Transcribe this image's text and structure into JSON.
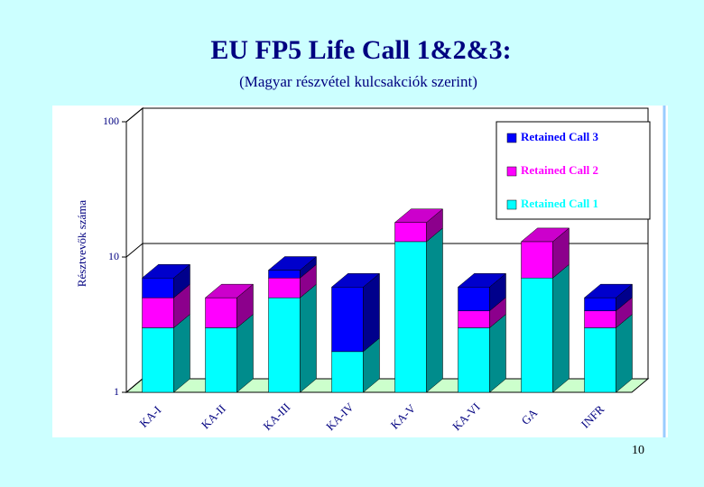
{
  "title": "EU FP5 Life Call 1&2&3:",
  "subtitle": "(Magyar részvétel kulcsakciók szerint)",
  "page_number": "10",
  "chart_data": {
    "type": "stacked_bar_3d",
    "y_label": "Résztvevők száma",
    "categories": [
      "KA-I",
      "KA-II",
      "KA-III",
      "KA-IV",
      "KA-V",
      "KA-VI",
      "GA",
      "INFR"
    ],
    "series": [
      {
        "name": "Retained Call 1",
        "color": "#00ffff",
        "values": [
          3,
          3,
          5,
          2,
          13,
          3,
          7,
          3
        ]
      },
      {
        "name": "Retained Call 2",
        "color": "#ff00ff",
        "values": [
          2,
          2,
          2,
          0,
          5,
          1,
          6,
          1
        ]
      },
      {
        "name": "Retained Call 3",
        "color": "#0000ff",
        "values": [
          2,
          0,
          1,
          4,
          0,
          2,
          0,
          1
        ]
      }
    ],
    "log_scale": true,
    "ylim": [
      1,
      100
    ],
    "yticks": [
      1,
      10,
      100
    ],
    "grid": true,
    "legend": "top-right"
  }
}
